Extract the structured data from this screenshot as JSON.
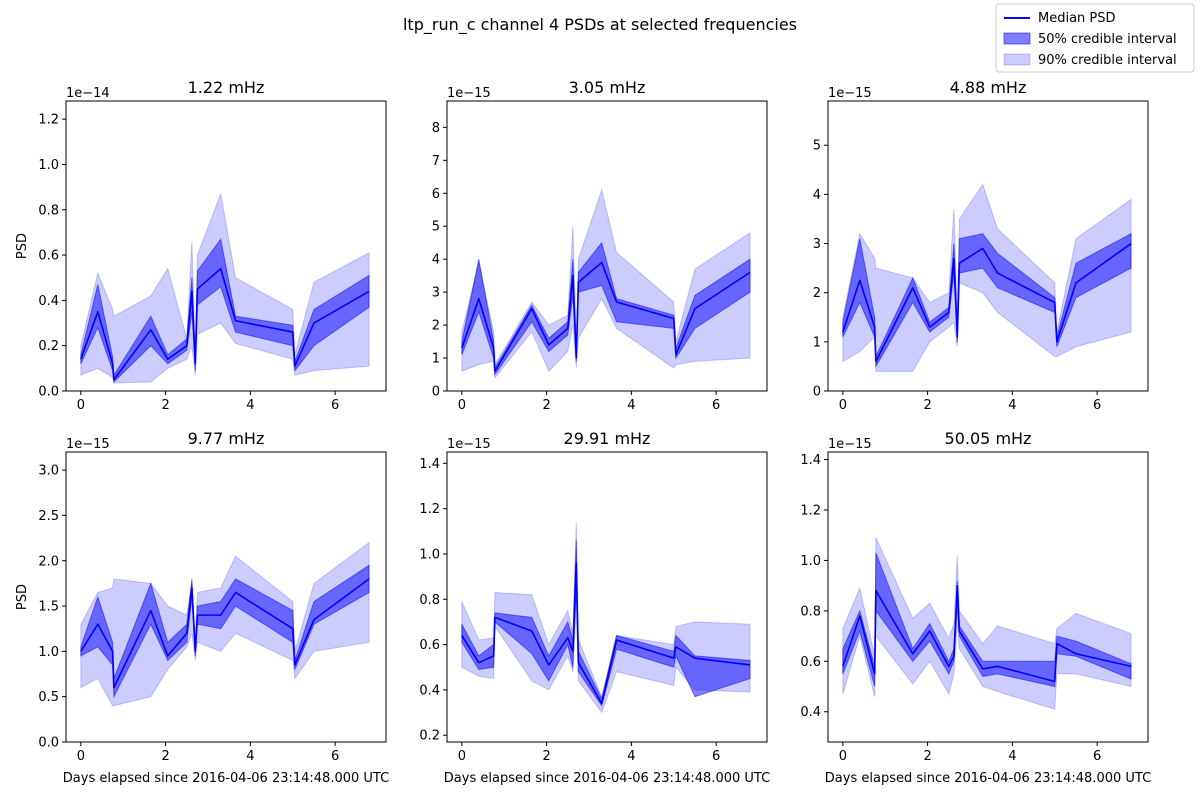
{
  "figure": {
    "title": "ltp_run_c channel 4 PSDs at selected frequencies",
    "legend": {
      "placement": "top-right",
      "items": [
        {
          "label": "Median PSD",
          "kind": "line",
          "color": "#0000ff"
        },
        {
          "label": "50% credible interval",
          "kind": "patch",
          "color": "#0000ff",
          "opacity": 0.5
        },
        {
          "label": "90% credible interval",
          "kind": "patch",
          "color": "#0000ff",
          "opacity": 0.2
        }
      ]
    }
  },
  "chart_data": [
    {
      "type": "area",
      "title": "1.22 mHz",
      "xlabel": "",
      "ylabel": "PSD",
      "offset_text": "1e−14",
      "xlim": [
        -0.35,
        7.2
      ],
      "ylim": [
        0,
        1.28
      ],
      "xticks": [
        0,
        2,
        4,
        6
      ],
      "yticks": [
        0.0,
        0.2,
        0.4,
        0.6,
        0.8,
        1.0,
        1.2
      ],
      "ytick_labels": [
        "0.0",
        "0.2",
        "0.4",
        "0.6",
        "0.8",
        "1.0",
        "1.2"
      ],
      "x": [
        0,
        0.4,
        0.75,
        0.78,
        1.65,
        2.05,
        2.5,
        2.62,
        2.7,
        2.75,
        3.3,
        3.65,
        5.0,
        5.05,
        5.5,
        6.8
      ],
      "median": [
        0.14,
        0.35,
        0.12,
        0.05,
        0.27,
        0.14,
        0.2,
        0.44,
        0.12,
        0.45,
        0.54,
        0.31,
        0.26,
        0.11,
        0.3,
        0.44
      ],
      "ci50_low": [
        0.12,
        0.28,
        0.09,
        0.04,
        0.2,
        0.12,
        0.18,
        0.35,
        0.09,
        0.38,
        0.46,
        0.26,
        0.2,
        0.09,
        0.2,
        0.37
      ],
      "ci50_high": [
        0.16,
        0.47,
        0.15,
        0.07,
        0.33,
        0.16,
        0.23,
        0.5,
        0.14,
        0.53,
        0.67,
        0.33,
        0.29,
        0.13,
        0.36,
        0.51
      ],
      "ci90_low": [
        0.07,
        0.1,
        0.06,
        0.035,
        0.04,
        0.1,
        0.14,
        0.2,
        0.07,
        0.25,
        0.3,
        0.21,
        0.14,
        0.07,
        0.09,
        0.11
      ],
      "ci90_high": [
        0.2,
        0.52,
        0.36,
        0.33,
        0.42,
        0.54,
        0.23,
        0.66,
        0.16,
        0.6,
        0.87,
        0.5,
        0.36,
        0.16,
        0.48,
        0.61
      ]
    },
    {
      "type": "area",
      "title": "3.05 mHz",
      "xlabel": "",
      "ylabel": "",
      "offset_text": "1e−15",
      "xlim": [
        -0.35,
        7.2
      ],
      "ylim": [
        0,
        8.8
      ],
      "xticks": [
        0,
        2,
        4,
        6
      ],
      "yticks": [
        0,
        1,
        2,
        3,
        4,
        5,
        6,
        7,
        8
      ],
      "ytick_labels": [
        "0",
        "1",
        "2",
        "3",
        "4",
        "5",
        "6",
        "7",
        "8"
      ],
      "x": [
        0,
        0.4,
        0.75,
        0.78,
        1.65,
        2.05,
        2.5,
        2.62,
        2.7,
        2.75,
        3.3,
        3.65,
        5.0,
        5.05,
        5.5,
        6.8
      ],
      "median": [
        1.3,
        2.8,
        1.3,
        0.6,
        2.5,
        1.4,
        1.9,
        3.5,
        1.0,
        3.3,
        3.9,
        2.7,
        2.2,
        1.1,
        2.5,
        3.6
      ],
      "ci50_low": [
        1.1,
        2.4,
        1.0,
        0.5,
        2.1,
        1.2,
        1.7,
        2.9,
        0.9,
        3.0,
        3.2,
        2.1,
        1.9,
        1.0,
        1.9,
        3.0
      ],
      "ci50_high": [
        1.5,
        4.0,
        1.5,
        0.7,
        2.6,
        1.6,
        2.1,
        4.0,
        1.2,
        3.6,
        4.5,
        2.8,
        2.3,
        1.3,
        2.9,
        4.0
      ],
      "ci90_low": [
        0.6,
        0.8,
        0.9,
        0.4,
        1.8,
        0.6,
        1.2,
        2.0,
        0.7,
        1.6,
        2.8,
        1.9,
        0.7,
        0.8,
        0.9,
        1.0
      ],
      "ci90_high": [
        1.8,
        3.9,
        1.8,
        0.8,
        2.7,
        2.0,
        2.3,
        5.0,
        1.4,
        4.0,
        6.1,
        4.2,
        2.7,
        1.5,
        3.7,
        4.8
      ]
    },
    {
      "type": "area",
      "title": "4.88 mHz",
      "xlabel": "",
      "ylabel": "",
      "offset_text": "1e−15",
      "xlim": [
        -0.35,
        7.2
      ],
      "ylim": [
        0,
        5.9
      ],
      "xticks": [
        0,
        2,
        4,
        6
      ],
      "yticks": [
        0,
        1,
        2,
        3,
        4,
        5
      ],
      "ytick_labels": [
        "0",
        "1",
        "2",
        "3",
        "4",
        "5"
      ],
      "x": [
        0,
        0.4,
        0.75,
        0.78,
        1.65,
        2.05,
        2.5,
        2.62,
        2.7,
        2.75,
        3.3,
        3.65,
        5.0,
        5.05,
        5.5,
        6.8
      ],
      "median": [
        1.2,
        2.25,
        1.3,
        0.6,
        2.1,
        1.3,
        1.6,
        2.7,
        1.1,
        2.6,
        2.9,
        2.4,
        1.8,
        1.0,
        2.2,
        3.0
      ],
      "ci50_low": [
        1.1,
        1.8,
        1.1,
        0.5,
        1.8,
        1.2,
        1.5,
        2.4,
        1.0,
        2.4,
        2.5,
        2.1,
        1.6,
        0.9,
        1.9,
        2.5
      ],
      "ci50_high": [
        1.4,
        3.1,
        1.5,
        0.7,
        2.3,
        1.4,
        1.7,
        3.0,
        1.3,
        3.1,
        3.2,
        2.8,
        1.9,
        1.1,
        2.6,
        3.2
      ],
      "ci90_low": [
        0.6,
        0.8,
        1.1,
        0.4,
        0.4,
        1.0,
        1.3,
        1.4,
        0.9,
        2.2,
        2.0,
        1.6,
        0.7,
        0.7,
        0.9,
        1.2
      ],
      "ci90_high": [
        1.5,
        3.2,
        2.7,
        2.5,
        2.3,
        1.8,
        2.0,
        3.7,
        1.4,
        3.5,
        4.2,
        3.3,
        2.2,
        1.2,
        3.1,
        3.9
      ]
    },
    {
      "type": "area",
      "title": "9.77 mHz",
      "xlabel": "Days elapsed since 2016-04-06 23:14:48.000 UTC",
      "ylabel": "PSD",
      "offset_text": "1e−15",
      "xlim": [
        -0.35,
        7.2
      ],
      "ylim": [
        0,
        3.2
      ],
      "xticks": [
        0,
        2,
        4,
        6
      ],
      "yticks": [
        0.0,
        0.5,
        1.0,
        1.5,
        2.0,
        2.5,
        3.0
      ],
      "ytick_labels": [
        "0.0",
        "0.5",
        "1.0",
        "1.5",
        "2.0",
        "2.5",
        "3.0"
      ],
      "x": [
        0,
        0.4,
        0.75,
        0.78,
        1.65,
        2.05,
        2.5,
        2.62,
        2.7,
        2.75,
        3.3,
        3.65,
        5.0,
        5.05,
        5.5,
        6.8
      ],
      "median": [
        1.0,
        1.3,
        1.0,
        0.6,
        1.45,
        0.95,
        1.2,
        1.7,
        1.0,
        1.4,
        1.4,
        1.65,
        1.25,
        0.85,
        1.35,
        1.8
      ],
      "ci50_low": [
        0.95,
        1.05,
        0.85,
        0.5,
        1.3,
        0.9,
        1.1,
        1.6,
        0.95,
        1.3,
        1.25,
        1.5,
        1.1,
        0.8,
        1.3,
        1.65
      ],
      "ci50_high": [
        1.05,
        1.6,
        1.1,
        0.7,
        1.75,
        1.1,
        1.3,
        1.8,
        1.05,
        1.5,
        1.55,
        1.8,
        1.45,
        0.9,
        1.55,
        1.95
      ],
      "ci90_low": [
        0.6,
        0.7,
        0.4,
        0.4,
        0.5,
        0.8,
        1.05,
        1.2,
        0.9,
        1.1,
        1.0,
        1.2,
        0.9,
        0.7,
        1.0,
        1.1
      ],
      "ci90_high": [
        1.3,
        1.65,
        1.7,
        1.8,
        1.75,
        1.5,
        1.4,
        1.75,
        1.1,
        1.65,
        1.7,
        2.05,
        1.55,
        1.0,
        1.75,
        2.2
      ]
    },
    {
      "type": "area",
      "title": "29.91 mHz",
      "xlabel": "Days elapsed since 2016-04-06 23:14:48.000 UTC",
      "ylabel": "",
      "offset_text": "1e−15",
      "xlim": [
        -0.35,
        7.2
      ],
      "ylim": [
        0.17,
        1.45
      ],
      "xticks": [
        0,
        2,
        4,
        6
      ],
      "yticks": [
        0.2,
        0.4,
        0.6,
        0.8,
        1.0,
        1.2,
        1.4
      ],
      "ytick_labels": [
        "0.2",
        "0.4",
        "0.6",
        "0.8",
        "1.0",
        "1.2",
        "1.4"
      ],
      "x": [
        0,
        0.4,
        0.75,
        0.78,
        1.65,
        2.05,
        2.5,
        2.62,
        2.7,
        2.75,
        3.3,
        3.65,
        5.0,
        5.05,
        5.5,
        6.8
      ],
      "median": [
        0.64,
        0.52,
        0.55,
        0.72,
        0.66,
        0.51,
        0.63,
        0.57,
        0.96,
        0.52,
        0.34,
        0.62,
        0.54,
        0.59,
        0.54,
        0.51
      ],
      "ci50_low": [
        0.61,
        0.49,
        0.5,
        0.7,
        0.56,
        0.44,
        0.6,
        0.5,
        0.85,
        0.48,
        0.33,
        0.58,
        0.5,
        0.55,
        0.37,
        0.45
      ],
      "ci50_high": [
        0.69,
        0.55,
        0.6,
        0.74,
        0.72,
        0.55,
        0.7,
        0.62,
        1.06,
        0.57,
        0.36,
        0.64,
        0.57,
        0.64,
        0.55,
        0.53
      ],
      "ci90_low": [
        0.5,
        0.46,
        0.45,
        0.68,
        0.44,
        0.4,
        0.55,
        0.48,
        0.8,
        0.44,
        0.3,
        0.48,
        0.42,
        0.5,
        0.4,
        0.39
      ],
      "ci90_high": [
        0.79,
        0.62,
        0.63,
        0.83,
        0.82,
        0.6,
        0.75,
        0.65,
        1.14,
        0.62,
        0.37,
        0.64,
        0.6,
        0.68,
        0.7,
        0.69
      ]
    },
    {
      "type": "area",
      "title": "50.05 mHz",
      "xlabel": "Days elapsed since 2016-04-06 23:14:48.000 UTC",
      "ylabel": "",
      "offset_text": "1e−15",
      "xlim": [
        -0.35,
        7.2
      ],
      "ylim": [
        0.28,
        1.43
      ],
      "xticks": [
        0,
        2,
        4,
        6
      ],
      "yticks": [
        0.4,
        0.6,
        0.8,
        1.0,
        1.2,
        1.4
      ],
      "ytick_labels": [
        "0.4",
        "0.6",
        "0.8",
        "1.0",
        "1.2",
        "1.4"
      ],
      "x": [
        0,
        0.4,
        0.75,
        0.78,
        1.65,
        2.05,
        2.5,
        2.62,
        2.7,
        2.75,
        3.3,
        3.65,
        5.0,
        5.05,
        5.5,
        6.8
      ],
      "median": [
        0.58,
        0.78,
        0.55,
        0.88,
        0.63,
        0.72,
        0.58,
        0.62,
        0.9,
        0.72,
        0.57,
        0.58,
        0.52,
        0.67,
        0.63,
        0.58
      ],
      "ci50_low": [
        0.55,
        0.72,
        0.5,
        0.8,
        0.6,
        0.68,
        0.55,
        0.6,
        0.82,
        0.7,
        0.54,
        0.55,
        0.5,
        0.63,
        0.62,
        0.53
      ],
      "ci50_high": [
        0.65,
        0.8,
        0.58,
        1.03,
        0.65,
        0.75,
        0.6,
        0.65,
        0.92,
        0.74,
        0.6,
        0.6,
        0.6,
        0.7,
        0.68,
        0.59
      ],
      "ci90_low": [
        0.47,
        0.7,
        0.46,
        0.7,
        0.51,
        0.6,
        0.47,
        0.55,
        0.75,
        0.65,
        0.5,
        0.48,
        0.41,
        0.55,
        0.55,
        0.5
      ],
      "ci90_high": [
        0.73,
        0.89,
        0.62,
        1.09,
        0.77,
        0.83,
        0.69,
        0.75,
        1.02,
        0.8,
        0.67,
        0.74,
        0.67,
        0.73,
        0.79,
        0.71
      ]
    }
  ]
}
